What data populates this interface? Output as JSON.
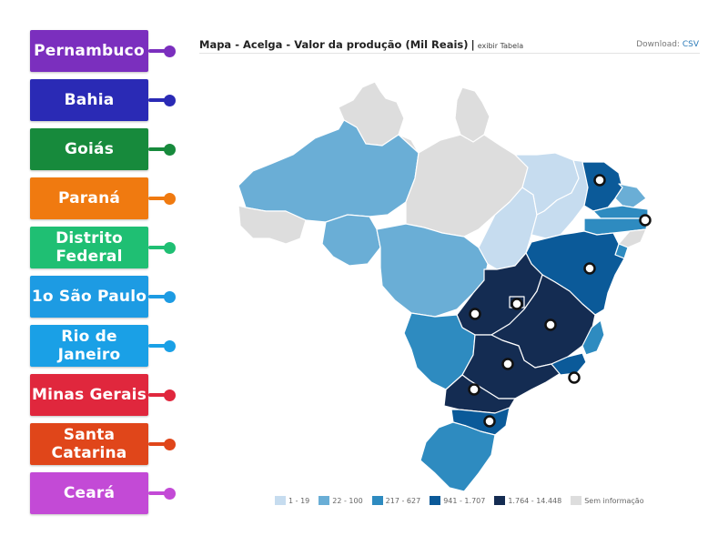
{
  "labels": [
    {
      "text": "Pernambuco",
      "color": "#7b2fbe",
      "dot": "#7b2fbe"
    },
    {
      "text": "Bahia",
      "color": "#2a2ab5",
      "dot": "#2a2ab5"
    },
    {
      "text": "Goiás",
      "color": "#178a3c",
      "dot": "#178a3c"
    },
    {
      "text": "Paraná",
      "color": "#f07a10",
      "dot": "#f07a10"
    },
    {
      "text": "Distrito Federal",
      "color": "#1fbf73",
      "dot": "#1fbf73"
    },
    {
      "text": "1o São Paulo",
      "color": "#1d9be3",
      "dot": "#1d9be3"
    },
    {
      "text": "Rio de Janeiro",
      "color": "#1aa0e6",
      "dot": "#1aa0e6"
    },
    {
      "text": "Minas Gerais",
      "color": "#e0273d",
      "dot": "#e0273d"
    },
    {
      "text": "Santa Catarina",
      "color": "#e0461a",
      "dot": "#e0461a"
    },
    {
      "text": "Ceará",
      "color": "#c34ad6",
      "dot": "#c34ad6"
    }
  ],
  "map": {
    "title": "Mapa - Acelga - Valor da produção (Mil Reais)",
    "separator": "|",
    "table_link": "exibir Tabela",
    "download_label": "Download:",
    "download_link": "CSV"
  },
  "legend": [
    {
      "label": "1 - 19",
      "color": "#c6dcef"
    },
    {
      "label": "22 - 100",
      "color": "#6aaed6"
    },
    {
      "label": "217 - 627",
      "color": "#2e8bc0"
    },
    {
      "label": "941 - 1.707",
      "color": "#0b5a99"
    },
    {
      "label": "1.764 - 14.448",
      "color": "#142c52"
    },
    {
      "label": "Sem informação",
      "color": "#dddddd"
    }
  ]
}
